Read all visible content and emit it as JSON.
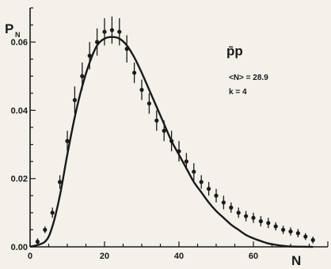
{
  "chart_data": {
    "type": "scatter",
    "xlabel": "N",
    "ylabel": {
      "main": "P",
      "sub": "N"
    },
    "xlim": [
      0,
      80
    ],
    "ylim": [
      0,
      0.07
    ],
    "x_ticks": [
      {
        "value": 0,
        "label": "0"
      },
      {
        "value": 20,
        "label": "20"
      },
      {
        "value": 40,
        "label": "40"
      },
      {
        "value": 60,
        "label": "60"
      }
    ],
    "y_ticks": [
      {
        "value": 0,
        "label": "0.00"
      },
      {
        "value": 0.02,
        "label": "0.02"
      },
      {
        "value": 0.04,
        "label": "0.04"
      },
      {
        "value": 0.06,
        "label": "0.06"
      }
    ],
    "grid": false,
    "annotations": {
      "title": "p̄p",
      "mean": "<N> = 28.9",
      "k": "k = 4"
    },
    "series": [
      {
        "kind": "data points with error bars",
        "points": [
          {
            "x": 2,
            "y": 0.0015,
            "err": 0.001
          },
          {
            "x": 4,
            "y": 0.005,
            "err": 0.001
          },
          {
            "x": 6,
            "y": 0.01,
            "err": 0.0015
          },
          {
            "x": 8,
            "y": 0.019,
            "err": 0.002
          },
          {
            "x": 10,
            "y": 0.031,
            "err": 0.003
          },
          {
            "x": 12,
            "y": 0.043,
            "err": 0.004
          },
          {
            "x": 14,
            "y": 0.05,
            "err": 0.004
          },
          {
            "x": 16,
            "y": 0.056,
            "err": 0.004
          },
          {
            "x": 18,
            "y": 0.06,
            "err": 0.004
          },
          {
            "x": 20,
            "y": 0.063,
            "err": 0.004
          },
          {
            "x": 22,
            "y": 0.0635,
            "err": 0.004
          },
          {
            "x": 24,
            "y": 0.063,
            "err": 0.004
          },
          {
            "x": 26,
            "y": 0.058,
            "err": 0.004
          },
          {
            "x": 28,
            "y": 0.051,
            "err": 0.003
          },
          {
            "x": 30,
            "y": 0.046,
            "err": 0.003
          },
          {
            "x": 32,
            "y": 0.042,
            "err": 0.003
          },
          {
            "x": 34,
            "y": 0.037,
            "err": 0.003
          },
          {
            "x": 36,
            "y": 0.034,
            "err": 0.003
          },
          {
            "x": 38,
            "y": 0.031,
            "err": 0.003
          },
          {
            "x": 40,
            "y": 0.028,
            "err": 0.003
          },
          {
            "x": 42,
            "y": 0.025,
            "err": 0.0025
          },
          {
            "x": 44,
            "y": 0.022,
            "err": 0.0025
          },
          {
            "x": 46,
            "y": 0.019,
            "err": 0.002
          },
          {
            "x": 48,
            "y": 0.017,
            "err": 0.002
          },
          {
            "x": 50,
            "y": 0.015,
            "err": 0.002
          },
          {
            "x": 52,
            "y": 0.013,
            "err": 0.002
          },
          {
            "x": 54,
            "y": 0.0115,
            "err": 0.0015
          },
          {
            "x": 56,
            "y": 0.01,
            "err": 0.0015
          },
          {
            "x": 58,
            "y": 0.009,
            "err": 0.0015
          },
          {
            "x": 60,
            "y": 0.0085,
            "err": 0.0015
          },
          {
            "x": 62,
            "y": 0.0075,
            "err": 0.0015
          },
          {
            "x": 64,
            "y": 0.007,
            "err": 0.0015
          },
          {
            "x": 66,
            "y": 0.006,
            "err": 0.0012
          },
          {
            "x": 68,
            "y": 0.005,
            "err": 0.0012
          },
          {
            "x": 70,
            "y": 0.0045,
            "err": 0.0012
          },
          {
            "x": 72,
            "y": 0.004,
            "err": 0.0012
          },
          {
            "x": 74,
            "y": 0.003,
            "err": 0.001
          },
          {
            "x": 76,
            "y": 0.002,
            "err": 0.001
          }
        ]
      },
      {
        "kind": "curve",
        "points": [
          {
            "x": 0,
            "y": 0.0
          },
          {
            "x": 4,
            "y": 0.0015
          },
          {
            "x": 6,
            "y": 0.006
          },
          {
            "x": 8,
            "y": 0.015
          },
          {
            "x": 10,
            "y": 0.027
          },
          {
            "x": 12,
            "y": 0.038
          },
          {
            "x": 14,
            "y": 0.047
          },
          {
            "x": 16,
            "y": 0.054
          },
          {
            "x": 18,
            "y": 0.059
          },
          {
            "x": 20,
            "y": 0.061
          },
          {
            "x": 22,
            "y": 0.0615
          },
          {
            "x": 24,
            "y": 0.061
          },
          {
            "x": 26,
            "y": 0.059
          },
          {
            "x": 28,
            "y": 0.0555
          },
          {
            "x": 30,
            "y": 0.051
          },
          {
            "x": 32,
            "y": 0.046
          },
          {
            "x": 34,
            "y": 0.041
          },
          {
            "x": 36,
            "y": 0.036
          },
          {
            "x": 38,
            "y": 0.031
          },
          {
            "x": 40,
            "y": 0.027
          },
          {
            "x": 42,
            "y": 0.023
          },
          {
            "x": 44,
            "y": 0.019
          },
          {
            "x": 46,
            "y": 0.016
          },
          {
            "x": 48,
            "y": 0.013
          },
          {
            "x": 50,
            "y": 0.0105
          },
          {
            "x": 52,
            "y": 0.0085
          },
          {
            "x": 54,
            "y": 0.0065
          },
          {
            "x": 56,
            "y": 0.005
          },
          {
            "x": 58,
            "y": 0.0035
          },
          {
            "x": 60,
            "y": 0.0025
          },
          {
            "x": 62,
            "y": 0.0017
          },
          {
            "x": 64,
            "y": 0.001
          },
          {
            "x": 66,
            "y": 0.0006
          },
          {
            "x": 68,
            "y": 0.0003
          },
          {
            "x": 70,
            "y": 0.0001
          },
          {
            "x": 76,
            "y": 0.0
          }
        ]
      }
    ],
    "colors": {
      "ink": "#1a1a1a",
      "paper": "#f4f1ea"
    }
  }
}
